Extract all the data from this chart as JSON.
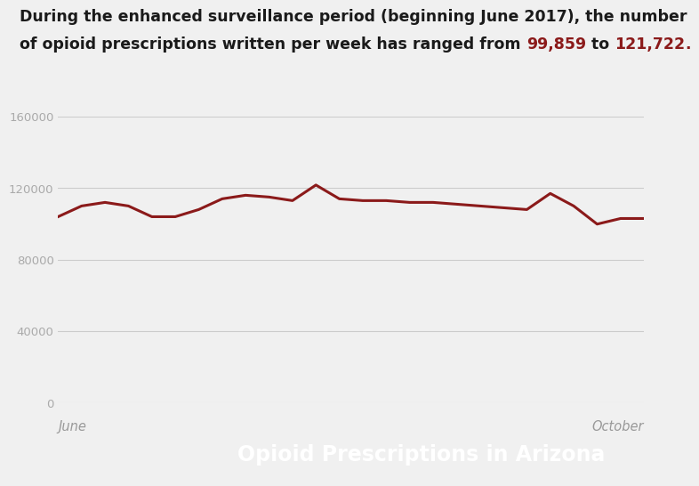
{
  "highlight1": "99,859",
  "highlight2": "121,722",
  "highlight_color": "#8B1A1A",
  "title_color": "#1a1a1a",
  "title_fontsize": 12.5,
  "background_color": "#f0f0f0",
  "line_color": "#8B1A1A",
  "line_width": 2.2,
  "y_values": [
    104000,
    110000,
    112000,
    110000,
    104000,
    104000,
    108000,
    114000,
    116000,
    115000,
    113000,
    121722,
    114000,
    113000,
    113000,
    112000,
    112000,
    111000,
    110000,
    109000,
    108000,
    117000,
    110000,
    99859,
    103000,
    103000
  ],
  "ylim": [
    0,
    160000
  ],
  "yticks": [
    0,
    40000,
    80000,
    120000,
    160000
  ],
  "ytick_labels": [
    "0",
    "40000",
    "80000",
    "120000",
    "160000"
  ],
  "xlabel_left": "June",
  "xlabel_right": "October",
  "xlabel_color": "#999999",
  "xlabel_fontsize": 10.5,
  "grid_color": "#cccccc",
  "footer_text": "Opioid Prescriptions in Arizona",
  "footer_bg": "#6B0000",
  "footer_text_color": "#ffffff",
  "footer_fontsize": 17,
  "line1": "During the enhanced surveillance period (beginning June 2017), the number",
  "line2_pre": "of opioid prescriptions written per week has ranged from ",
  "line2_mid": " to ",
  "line2_end": "."
}
